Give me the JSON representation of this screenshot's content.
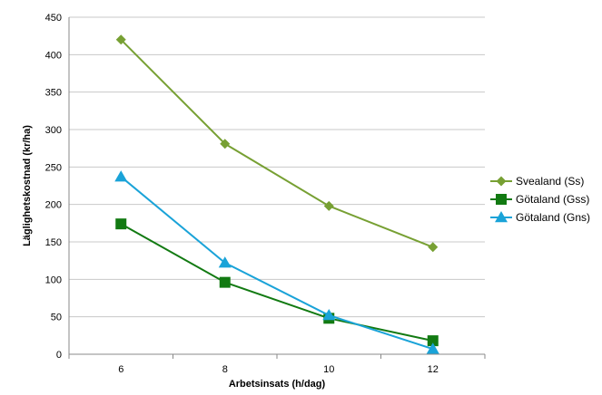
{
  "chart_data": {
    "type": "line",
    "xlabel": "Arbetsinsats (h/dag)",
    "ylabel": "Läglighetskostnad (kr/ha)",
    "x": [
      6,
      8,
      10,
      12
    ],
    "x_tick_labels": [
      "6",
      "8",
      "10",
      "12"
    ],
    "ylim": [
      0,
      450
    ],
    "y_ticks": [
      0,
      50,
      100,
      150,
      200,
      250,
      300,
      350,
      400,
      450
    ],
    "y_tick_labels": [
      "0",
      "50",
      "100",
      "150",
      "200",
      "250",
      "300",
      "350",
      "400",
      "450"
    ],
    "grid": "horizontal",
    "legend_position": "right",
    "series": [
      {
        "name": "Svealand (Ss)",
        "values": [
          420,
          281,
          198,
          143
        ],
        "color": "#77a033",
        "marker": "diamond"
      },
      {
        "name": "Götaland (Gss)",
        "values": [
          174,
          96,
          48,
          18
        ],
        "color": "#127a12",
        "marker": "square"
      },
      {
        "name": "Götaland (Gns)",
        "values": [
          237,
          122,
          52,
          7
        ],
        "color": "#1aa3d8",
        "marker": "triangle"
      }
    ]
  }
}
